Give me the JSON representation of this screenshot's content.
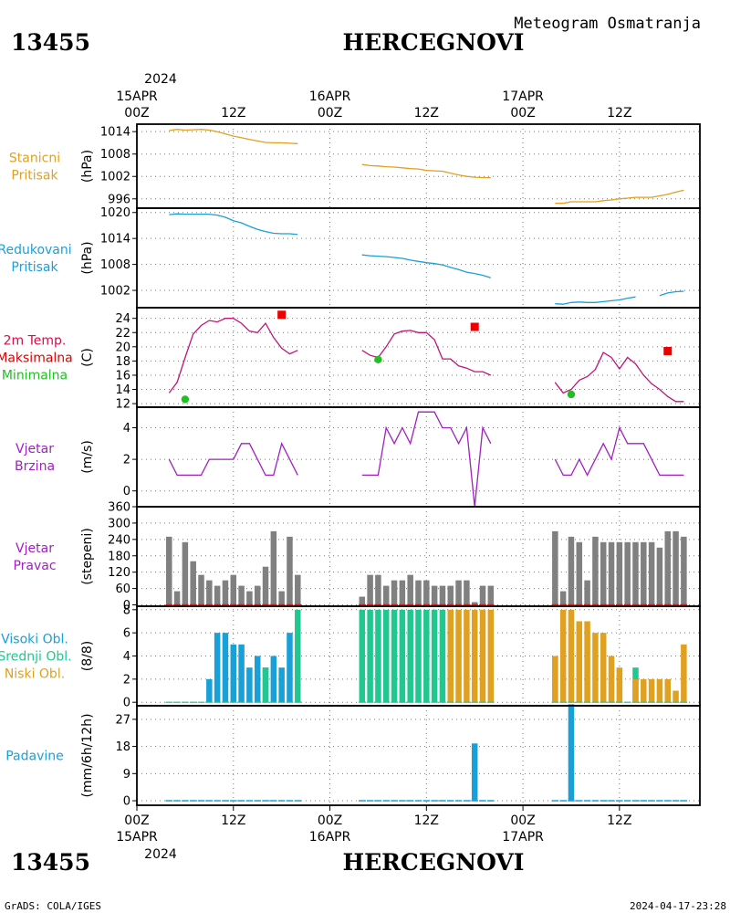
{
  "header": {
    "station_id": "13455",
    "station_name": "HERCEGNOVI",
    "subtitle": "Meteogram Osmatranja"
  },
  "footer": {
    "station_id": "13455",
    "station_name": "HERCEGNOVI",
    "credit": "GrADS: COLA/IGES",
    "timestamp": "2024-04-17-23:28"
  },
  "time_axis": {
    "year": "2024",
    "start_hour": 0,
    "end_hour": 70,
    "ticks": [
      {
        "hour": 0,
        "label": "00Z",
        "date": "15APR"
      },
      {
        "hour": 12,
        "label": "12Z",
        "date": ""
      },
      {
        "hour": 24,
        "label": "00Z",
        "date": "16APR"
      },
      {
        "hour": 36,
        "label": "12Z",
        "date": ""
      },
      {
        "hour": 48,
        "label": "00Z",
        "date": "17APR"
      },
      {
        "hour": 60,
        "label": "12Z",
        "date": ""
      }
    ]
  },
  "chart_data": [
    {
      "type": "line",
      "id": "stanicni",
      "title_lines": [
        "Stanicni",
        "Pritisak"
      ],
      "ylabel": "(hPa)",
      "ylim": [
        993.5,
        1016
      ],
      "yticks": [
        996,
        1002,
        1008,
        1014
      ],
      "color": "#e0a020",
      "grid": true,
      "series": [
        {
          "x": [
            4,
            5,
            6,
            7,
            8,
            9,
            10,
            11,
            12,
            13,
            14,
            15,
            16,
            17,
            18,
            19,
            20
          ],
          "y": [
            1014.3,
            1014.6,
            1014.4,
            1014.5,
            1014.6,
            1014.4,
            1014.0,
            1013.4,
            1012.8,
            1012.4,
            1011.9,
            1011.5,
            1011.1,
            1011.0,
            1011.0,
            1010.9,
            1010.8
          ]
        },
        {
          "x": [
            28,
            29,
            30,
            31,
            32,
            33,
            34,
            35,
            36,
            37,
            38,
            39,
            40,
            41,
            42,
            43,
            44
          ],
          "y": [
            1005.2,
            1004.9,
            1004.8,
            1004.6,
            1004.5,
            1004.3,
            1004.1,
            1004.0,
            1003.6,
            1003.5,
            1003.4,
            1002.9,
            1002.4,
            1002.0,
            1001.8,
            1001.7,
            1001.7
          ]
        },
        {
          "x": [
            52,
            53,
            54,
            55,
            56,
            57,
            58,
            59,
            60,
            61,
            62,
            63,
            64,
            65,
            66,
            67,
            68
          ],
          "y": [
            994.8,
            994.8,
            995.2,
            995.2,
            995.2,
            995.2,
            995.5,
            995.7,
            996.0,
            996.2,
            996.4,
            996.4,
            996.4,
            996.8,
            997.2,
            997.8,
            998.3
          ]
        }
      ]
    },
    {
      "type": "line",
      "id": "redukovani",
      "title_lines": [
        "Redukovani",
        "Pritisak"
      ],
      "ylabel": "(hPa)",
      "ylim": [
        998,
        1021
      ],
      "yticks": [
        1002,
        1008,
        1014,
        1020
      ],
      "color": "#1aa0d8",
      "grid": true,
      "series": [
        {
          "x": [
            4,
            5,
            6,
            7,
            8,
            9,
            10,
            11,
            12,
            13,
            14,
            15,
            16,
            17,
            18,
            19,
            20
          ],
          "y": [
            1019.5,
            1019.7,
            1019.6,
            1019.6,
            1019.6,
            1019.6,
            1019.4,
            1018.9,
            1018.1,
            1017.6,
            1016.8,
            1016.1,
            1015.6,
            1015.2,
            1015.1,
            1015.1,
            1014.9
          ]
        },
        {
          "x": [
            28,
            29,
            30,
            31,
            32,
            33,
            34,
            35,
            36,
            37,
            38,
            39,
            40,
            41,
            42,
            43,
            44
          ],
          "y": [
            1010.2,
            1010.0,
            1009.9,
            1009.8,
            1009.6,
            1009.4,
            1009.0,
            1008.7,
            1008.4,
            1008.2,
            1007.9,
            1007.3,
            1006.8,
            1006.2,
            1005.9,
            1005.5,
            1004.9
          ]
        },
        {
          "x": [
            52,
            53,
            54,
            55,
            56,
            57,
            58,
            59,
            60,
            61,
            62
          ],
          "y": [
            998.9,
            998.8,
            999.2,
            999.3,
            999.2,
            999.2,
            999.4,
            999.6,
            999.8,
            1000.2,
            1000.5
          ]
        },
        {
          "x": [
            65,
            66,
            67,
            68
          ],
          "y": [
            1000.8,
            1001.4,
            1001.7,
            1001.8
          ]
        }
      ]
    },
    {
      "type": "line",
      "id": "temperatura",
      "title_lines": [
        "2m Temp.",
        "Maksimalna",
        "Minimalna"
      ],
      "title_colors": [
        "#d0104a",
        "#e00000",
        "#20c020"
      ],
      "ylabel": "(C)",
      "ylim": [
        11.5,
        25.5
      ],
      "yticks": [
        12,
        14,
        16,
        18,
        20,
        22,
        24
      ],
      "color": "#c0157a",
      "grid": true,
      "series": [
        {
          "x": [
            4,
            5,
            6,
            7,
            8,
            9,
            10,
            11,
            12,
            13,
            14,
            15,
            16,
            17,
            18,
            19,
            20
          ],
          "y": [
            13.5,
            15.0,
            18.5,
            21.8,
            23.0,
            23.7,
            23.5,
            24.0,
            24.0,
            23.3,
            22.2,
            22.0,
            23.3,
            21.3,
            19.8,
            19.0,
            19.5
          ]
        },
        {
          "x": [
            28,
            29,
            30,
            31,
            32,
            33,
            34,
            35,
            36,
            37,
            38,
            39,
            40,
            41,
            42,
            43,
            44
          ],
          "y": [
            19.5,
            18.8,
            18.5,
            20.0,
            21.8,
            22.2,
            22.3,
            22.0,
            22.0,
            21.0,
            18.3,
            18.3,
            17.3,
            17.0,
            16.5,
            16.5,
            16.0
          ]
        },
        {
          "x": [
            52,
            53,
            54,
            55,
            56,
            57,
            58,
            59,
            60,
            61,
            62,
            63,
            64,
            65,
            66,
            67,
            68
          ],
          "y": [
            15.0,
            13.5,
            14.0,
            15.3,
            15.8,
            16.8,
            19.2,
            18.5,
            16.9,
            18.5,
            17.6,
            16.0,
            14.8,
            14.0,
            13.0,
            12.3,
            12.3
          ]
        }
      ],
      "max_points": [
        {
          "x": 18,
          "y": 24.5
        },
        {
          "x": 42,
          "y": 22.8
        },
        {
          "x": 66,
          "y": 19.4
        }
      ],
      "min_points": [
        {
          "x": 6,
          "y": 12.6
        },
        {
          "x": 30,
          "y": 18.2
        },
        {
          "x": 54,
          "y": 13.3
        }
      ],
      "max_color": "#ee0000",
      "min_color": "#20c020"
    },
    {
      "type": "line",
      "id": "vjetar_brzina",
      "title_lines": [
        "Vjetar",
        "Brzina"
      ],
      "ylabel": "(m/s)",
      "ylim": [
        -1,
        5.3
      ],
      "yticks": [
        0,
        2,
        4
      ],
      "color": "#a020c0",
      "grid": true,
      "series": [
        {
          "x": [
            4,
            5,
            6,
            7,
            8,
            9,
            10,
            11,
            12,
            13,
            14,
            15,
            16,
            17,
            18,
            19,
            20
          ],
          "y": [
            2,
            1,
            1,
            1,
            1,
            2,
            2,
            2,
            2,
            3,
            3,
            2,
            1,
            1,
            3,
            2,
            1
          ]
        },
        {
          "x": [
            28,
            29,
            30,
            31,
            32,
            33,
            34,
            35,
            36,
            37,
            38,
            39,
            40,
            41,
            42,
            43,
            44
          ],
          "y": [
            1,
            1,
            1,
            4,
            3,
            4,
            3,
            5,
            5,
            5,
            4,
            4,
            3,
            4,
            -1,
            4,
            3
          ]
        },
        {
          "x": [
            52,
            53,
            54,
            55,
            56,
            57,
            58,
            59,
            60,
            61,
            62,
            63,
            64,
            65,
            66,
            67,
            68
          ],
          "y": [
            2,
            1,
            1,
            2,
            1,
            2,
            3,
            2,
            4,
            3,
            3,
            3,
            2,
            1,
            1,
            1,
            1
          ]
        }
      ]
    },
    {
      "type": "bar",
      "id": "vjetar_pravac",
      "title_lines": [
        "Vjetar",
        "Pravac"
      ],
      "ylabel": "(stepeni)",
      "ylim": [
        -5,
        360
      ],
      "yticks": [
        0,
        60,
        120,
        180,
        240,
        300,
        360
      ],
      "color": "#808080",
      "grid": true,
      "x": [
        4,
        5,
        6,
        7,
        8,
        9,
        10,
        11,
        12,
        13,
        14,
        15,
        16,
        17,
        18,
        19,
        20,
        28,
        29,
        30,
        31,
        32,
        33,
        34,
        35,
        36,
        37,
        38,
        39,
        40,
        41,
        42,
        43,
        44,
        52,
        53,
        54,
        55,
        56,
        57,
        58,
        59,
        60,
        61,
        62,
        63,
        64,
        65,
        66,
        67,
        68
      ],
      "values": [
        250,
        50,
        230,
        160,
        110,
        90,
        70,
        90,
        110,
        70,
        50,
        70,
        140,
        270,
        50,
        250,
        110,
        30,
        110,
        110,
        70,
        90,
        90,
        110,
        90,
        90,
        70,
        70,
        70,
        90,
        90,
        10,
        70,
        70,
        270,
        50,
        250,
        230,
        90,
        250,
        230,
        230,
        230,
        230,
        230,
        230,
        230,
        210,
        270,
        270,
        250
      ]
    },
    {
      "type": "bar",
      "id": "oblacnost",
      "title_lines": [
        "Visoki Obl.",
        "Srednji Obl.",
        "Niski Obl."
      ],
      "title_colors": [
        "#1aa0d8",
        "#20c890",
        "#e0a020"
      ],
      "ylabel": "(8/8)",
      "ylim": [
        -0.3,
        8.3
      ],
      "yticks": [
        0,
        2,
        4,
        6,
        8
      ],
      "grid": true,
      "x": [
        4,
        5,
        6,
        7,
        8,
        9,
        10,
        11,
        12,
        13,
        14,
        15,
        16,
        17,
        18,
        19,
        20,
        28,
        29,
        30,
        31,
        32,
        33,
        34,
        35,
        36,
        37,
        38,
        39,
        40,
        41,
        42,
        43,
        44,
        52,
        53,
        54,
        55,
        56,
        57,
        58,
        59,
        60,
        61,
        62,
        63,
        64,
        65,
        66,
        67,
        68
      ],
      "series": [
        {
          "name": "Visoki Obl.",
          "color": "#1aa0d8",
          "values": [
            0,
            0,
            0,
            0,
            0,
            2,
            6,
            6,
            5,
            5,
            3,
            4,
            3,
            4,
            3,
            6,
            0,
            0,
            0,
            0,
            0,
            0,
            0,
            0,
            0,
            0,
            0,
            0,
            0,
            0,
            0,
            0,
            0,
            0,
            0,
            0,
            0,
            0,
            0,
            0,
            0,
            0,
            0,
            0,
            0,
            0,
            0,
            0,
            0,
            0,
            0
          ]
        },
        {
          "name": "Srednji Obl.",
          "color": "#20c890",
          "values": [
            0,
            0,
            0,
            0,
            0,
            0,
            0,
            0,
            0,
            0,
            0,
            0,
            3,
            0,
            0,
            0,
            8,
            8,
            8,
            8,
            8,
            8,
            8,
            8,
            8,
            8,
            8,
            8,
            0,
            0,
            0,
            0,
            0,
            0,
            4,
            0,
            0,
            0,
            0,
            0,
            0,
            0,
            0,
            0,
            3,
            0,
            0,
            0,
            0,
            0,
            0
          ]
        },
        {
          "name": "Niski Obl.",
          "color": "#e0a020",
          "values": [
            0,
            0,
            0,
            0,
            0,
            0,
            0,
            0,
            0,
            0,
            0,
            0,
            0,
            0,
            0,
            0,
            0,
            0,
            0,
            0,
            0,
            0,
            0,
            0,
            0,
            0,
            0,
            0,
            8,
            8,
            8,
            8,
            8,
            8,
            4,
            8,
            8,
            7,
            7,
            6,
            6,
            4,
            3,
            0,
            2,
            2,
            2,
            2,
            2,
            1,
            5
          ]
        }
      ]
    },
    {
      "type": "bar",
      "id": "padavine",
      "title_lines": [
        "Padavine"
      ],
      "title_colors": [
        "#1aa0d8"
      ],
      "ylabel": "(mm/6h/12h)",
      "ylim": [
        -1.5,
        31.5
      ],
      "yticks": [
        0,
        9,
        18,
        27
      ],
      "color": "#1aa0d8",
      "grid": true,
      "x": [
        4,
        5,
        6,
        7,
        8,
        9,
        10,
        11,
        12,
        13,
        14,
        15,
        16,
        17,
        18,
        19,
        20,
        28,
        29,
        30,
        31,
        32,
        33,
        34,
        35,
        36,
        37,
        38,
        39,
        40,
        41,
        42,
        43,
        44,
        52,
        53,
        54,
        55,
        56,
        57,
        58,
        59,
        60,
        61,
        62,
        63,
        64,
        65,
        66,
        67,
        68
      ],
      "values": [
        0,
        0,
        0,
        0,
        0,
        0,
        0,
        0,
        0,
        0,
        0,
        0,
        0,
        0,
        0,
        0,
        0,
        0,
        0,
        0,
        0,
        0,
        0,
        0,
        0,
        0,
        0,
        0,
        0,
        0,
        0,
        19,
        0,
        0,
        0,
        0,
        32,
        0,
        0,
        0,
        0,
        0,
        0,
        0,
        0,
        0,
        0,
        0,
        0,
        0,
        0
      ]
    }
  ]
}
